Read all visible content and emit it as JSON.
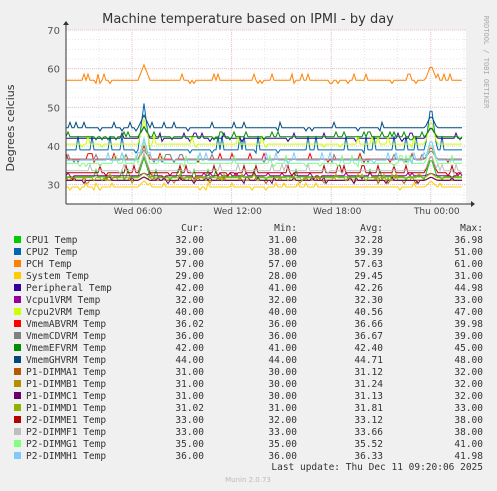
{
  "chart_data": {
    "type": "line",
    "title": "Machine temperature based on IPMI - by day",
    "ylabel": "Degrees celcius",
    "watermark": "RRDTOOL / TOBI OETIKER",
    "ylim": [
      25,
      70
    ],
    "y_ticks": [
      30,
      40,
      50,
      60,
      70
    ],
    "x_tick_labels": [
      "Wed 06:00",
      "Wed 12:00",
      "Wed 18:00",
      "Thu 00:00",
      "Thu 06:00"
    ],
    "grid": true,
    "legend_headers": [
      "Cur:",
      "Min:",
      "Avg:",
      "Max:"
    ],
    "series": [
      {
        "name": "CPU1 Temp",
        "color": "#00cc00",
        "cur": "32.00",
        "min": "31.00",
        "avg": "32.28",
        "max": "36.98",
        "base": 32,
        "spike": 36.98
      },
      {
        "name": "CPU2 Temp",
        "color": "#0066b3",
        "cur": "39.00",
        "min": "38.00",
        "avg": "39.39",
        "max": "51.00",
        "base": 39,
        "spike": 51
      },
      {
        "name": "PCH Temp",
        "color": "#ff8000",
        "cur": "57.00",
        "min": "57.00",
        "avg": "57.63",
        "max": "61.00",
        "base": 57,
        "spike": 61
      },
      {
        "name": "System Temp",
        "color": "#ffcc00",
        "cur": "29.00",
        "min": "28.00",
        "avg": "29.45",
        "max": "31.00",
        "base": 29.4,
        "spike": 31
      },
      {
        "name": "Peripheral Temp",
        "color": "#330099",
        "cur": "42.00",
        "min": "41.00",
        "avg": "42.26",
        "max": "44.98",
        "base": 42,
        "spike": 44.98
      },
      {
        "name": "Vcpu1VRM Temp",
        "color": "#990099",
        "cur": "32.00",
        "min": "32.00",
        "avg": "32.30",
        "max": "33.00",
        "base": 32.3,
        "spike": 33
      },
      {
        "name": "Vcpu2VRM Temp",
        "color": "#ccff00",
        "cur": "40.00",
        "min": "40.00",
        "avg": "40.56",
        "max": "47.00",
        "base": 40.5,
        "spike": 47
      },
      {
        "name": "VmemABVRM Temp",
        "color": "#ff0000",
        "cur": "36.02",
        "min": "36.00",
        "avg": "36.66",
        "max": "39.98",
        "base": 36.6,
        "spike": 39.98
      },
      {
        "name": "VmemCDVRM Temp",
        "color": "#808080",
        "cur": "36.00",
        "min": "36.00",
        "avg": "36.67",
        "max": "39.00",
        "base": 36.6,
        "spike": 39
      },
      {
        "name": "VmemEFVRM Temp",
        "color": "#008f00",
        "cur": "42.00",
        "min": "41.00",
        "avg": "42.40",
        "max": "45.00",
        "base": 42.4,
        "spike": 45
      },
      {
        "name": "VmemGHVRM Temp",
        "color": "#00487d",
        "cur": "44.00",
        "min": "44.00",
        "avg": "44.71",
        "max": "48.00",
        "base": 44.7,
        "spike": 48
      },
      {
        "name": "P1-DIMMA1 Temp",
        "color": "#b35a00",
        "cur": "31.00",
        "min": "30.00",
        "avg": "31.12",
        "max": "32.00",
        "base": 31.1,
        "spike": 32
      },
      {
        "name": "P1-DIMMB1 Temp",
        "color": "#b38f00",
        "cur": "31.00",
        "min": "30.00",
        "avg": "31.24",
        "max": "32.00",
        "base": 31.2,
        "spike": 32
      },
      {
        "name": "P1-DIMMC1 Temp",
        "color": "#6b006b",
        "cur": "31.00",
        "min": "30.00",
        "avg": "31.13",
        "max": "32.00",
        "base": 31.1,
        "spike": 32
      },
      {
        "name": "P1-DIMMD1 Temp",
        "color": "#8fb300",
        "cur": "31.02",
        "min": "31.00",
        "avg": "31.81",
        "max": "33.00",
        "base": 31.8,
        "spike": 33
      },
      {
        "name": "P2-DIMME1 Temp",
        "color": "#b30000",
        "cur": "33.00",
        "min": "32.00",
        "avg": "33.12",
        "max": "38.00",
        "base": 33.1,
        "spike": 38
      },
      {
        "name": "P2-DIMMF1 Temp",
        "color": "#bebebe",
        "cur": "33.00",
        "min": "33.00",
        "avg": "33.66",
        "max": "38.00",
        "base": 33.6,
        "spike": 38
      },
      {
        "name": "P2-DIMMG1 Temp",
        "color": "#80ff80",
        "cur": "35.00",
        "min": "35.00",
        "avg": "35.52",
        "max": "41.00",
        "base": 35.5,
        "spike": 41
      },
      {
        "name": "P2-DIMMH1 Temp",
        "color": "#80c9ff",
        "cur": "36.00",
        "min": "36.00",
        "avg": "36.33",
        "max": "41.98",
        "base": 36.3,
        "spike": 41.98
      }
    ]
  },
  "footer": {
    "last_update": "Last update: Thu Dec 11 09:20:06 2025",
    "version": "Munin 2.0.73"
  }
}
